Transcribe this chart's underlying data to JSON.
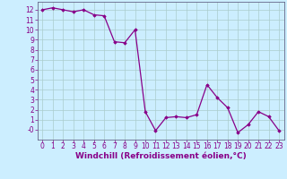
{
  "x": [
    0,
    1,
    2,
    3,
    4,
    5,
    6,
    7,
    8,
    9,
    10,
    11,
    12,
    13,
    14,
    15,
    16,
    17,
    18,
    19,
    20,
    21,
    22,
    23
  ],
  "y": [
    12,
    12.2,
    12,
    11.8,
    12,
    11.5,
    11.4,
    8.8,
    8.7,
    10,
    1.8,
    -0.1,
    1.2,
    1.3,
    1.2,
    1.5,
    4.5,
    3.2,
    2.2,
    -0.3,
    0.5,
    1.8,
    1.3,
    -0.1
  ],
  "line_color": "#880088",
  "marker": "D",
  "marker_size": 1.8,
  "line_width": 0.9,
  "bg_color": "#cceeff",
  "grid_color": "#aacccc",
  "xlabel": "Windchill (Refroidissement éolien,°C)",
  "xlim": [
    -0.5,
    23.5
  ],
  "ylim": [
    -1,
    12.8
  ],
  "ytick_labels": [
    "-0",
    "1",
    "2",
    "3",
    "4",
    "5",
    "6",
    "7",
    "8",
    "9",
    "10",
    "11",
    "12"
  ],
  "ytick_vals": [
    0,
    1,
    2,
    3,
    4,
    5,
    6,
    7,
    8,
    9,
    10,
    11,
    12
  ],
  "xticks": [
    0,
    1,
    2,
    3,
    4,
    5,
    6,
    7,
    8,
    9,
    10,
    11,
    12,
    13,
    14,
    15,
    16,
    17,
    18,
    19,
    20,
    21,
    22,
    23
  ],
  "tick_fontsize": 5.5,
  "xlabel_fontsize": 6.5
}
